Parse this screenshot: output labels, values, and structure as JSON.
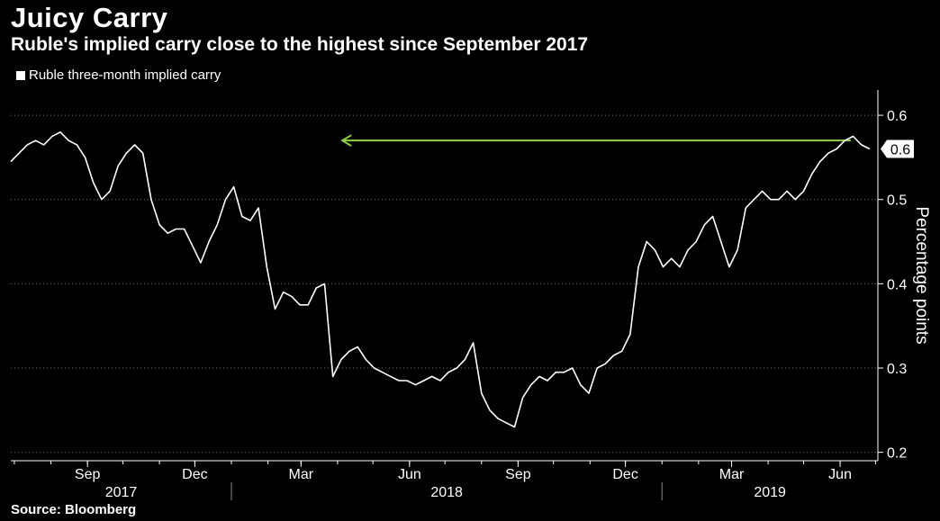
{
  "header": {
    "title": "Juicy Carry",
    "subtitle": "Ruble's implied carry close to the highest since September 2017"
  },
  "legend": {
    "label": "Ruble three-month implied carry"
  },
  "footer": {
    "source": "Source: Bloomberg"
  },
  "colors": {
    "background": "#000000",
    "line": "#ffffff",
    "grid": "#6e6e6e",
    "arrow": "#8ed13f"
  },
  "chart_data": {
    "type": "line",
    "title": "Juicy Carry",
    "subtitle": "Ruble's implied carry close to the highest since September 2017",
    "ylabel": "Percentage points",
    "xlabel": "",
    "ylim": [
      0.19,
      0.63
    ],
    "xlim": [
      "2017-06-28",
      "2019-07-03"
    ],
    "y_ticks": [
      0.2,
      0.3,
      0.4,
      0.5,
      0.6
    ],
    "y_tick_labels": [
      "0.2",
      "0.3",
      "0.4",
      "0.5",
      "0.6"
    ],
    "x_month_ticks": [
      {
        "date": "2017-09-01",
        "label": "Sep"
      },
      {
        "date": "2017-12-01",
        "label": "Dec"
      },
      {
        "date": "2018-03-01",
        "label": "Mar"
      },
      {
        "date": "2018-06-01",
        "label": "Jun"
      },
      {
        "date": "2018-09-01",
        "label": "Sep"
      },
      {
        "date": "2018-12-01",
        "label": "Dec"
      },
      {
        "date": "2019-03-01",
        "label": "Mar"
      },
      {
        "date": "2019-06-01",
        "label": "Jun"
      }
    ],
    "x_year_labels": [
      {
        "label": "2017",
        "start": "2017-06-28",
        "end": "2018-01-01"
      },
      {
        "label": "2018",
        "start": "2018-01-01",
        "end": "2019-01-01"
      },
      {
        "label": "2019",
        "start": "2019-01-01",
        "end": "2019-07-03"
      }
    ],
    "grid": true,
    "legend_position": "top-left",
    "last_value_label": "0.6",
    "annotation": {
      "type": "arrow",
      "from": "2019-06-10",
      "to": "2018-04-05",
      "y": 0.57,
      "direction": "left"
    },
    "series": [
      {
        "name": "Ruble three-month implied carry",
        "x": [
          "2017-06-28",
          "2017-07-05",
          "2017-07-12",
          "2017-07-19",
          "2017-07-26",
          "2017-08-02",
          "2017-08-09",
          "2017-08-16",
          "2017-08-23",
          "2017-08-30",
          "2017-09-06",
          "2017-09-13",
          "2017-09-20",
          "2017-09-27",
          "2017-10-04",
          "2017-10-11",
          "2017-10-18",
          "2017-10-25",
          "2017-11-01",
          "2017-11-08",
          "2017-11-15",
          "2017-11-22",
          "2017-11-29",
          "2017-12-06",
          "2017-12-13",
          "2017-12-20",
          "2017-12-27",
          "2018-01-03",
          "2018-01-10",
          "2018-01-17",
          "2018-01-24",
          "2018-01-31",
          "2018-02-07",
          "2018-02-14",
          "2018-02-21",
          "2018-02-28",
          "2018-03-07",
          "2018-03-14",
          "2018-03-21",
          "2018-03-28",
          "2018-04-04",
          "2018-04-11",
          "2018-04-18",
          "2018-04-25",
          "2018-05-02",
          "2018-05-09",
          "2018-05-16",
          "2018-05-23",
          "2018-05-30",
          "2018-06-06",
          "2018-06-13",
          "2018-06-20",
          "2018-06-27",
          "2018-07-04",
          "2018-07-11",
          "2018-07-18",
          "2018-07-25",
          "2018-08-01",
          "2018-08-08",
          "2018-08-15",
          "2018-08-22",
          "2018-08-29",
          "2018-09-05",
          "2018-09-12",
          "2018-09-19",
          "2018-09-26",
          "2018-10-03",
          "2018-10-10",
          "2018-10-17",
          "2018-10-24",
          "2018-10-31",
          "2018-11-07",
          "2018-11-14",
          "2018-11-21",
          "2018-11-28",
          "2018-12-05",
          "2018-12-12",
          "2018-12-19",
          "2018-12-26",
          "2019-01-02",
          "2019-01-09",
          "2019-01-16",
          "2019-01-23",
          "2019-01-30",
          "2019-02-06",
          "2019-02-13",
          "2019-02-20",
          "2019-02-27",
          "2019-03-06",
          "2019-03-13",
          "2019-03-20",
          "2019-03-27",
          "2019-04-03",
          "2019-04-10",
          "2019-04-17",
          "2019-04-24",
          "2019-05-01",
          "2019-05-08",
          "2019-05-15",
          "2019-05-22",
          "2019-05-29",
          "2019-06-05",
          "2019-06-12",
          "2019-06-19",
          "2019-06-26"
        ],
        "y": [
          0.545,
          0.555,
          0.565,
          0.57,
          0.565,
          0.575,
          0.58,
          0.57,
          0.565,
          0.55,
          0.52,
          0.5,
          0.51,
          0.54,
          0.555,
          0.565,
          0.555,
          0.5,
          0.47,
          0.46,
          0.465,
          0.465,
          0.445,
          0.425,
          0.45,
          0.47,
          0.5,
          0.515,
          0.48,
          0.475,
          0.49,
          0.42,
          0.37,
          0.39,
          0.385,
          0.375,
          0.375,
          0.395,
          0.4,
          0.29,
          0.31,
          0.32,
          0.325,
          0.31,
          0.3,
          0.295,
          0.29,
          0.285,
          0.285,
          0.28,
          0.285,
          0.29,
          0.285,
          0.295,
          0.3,
          0.31,
          0.33,
          0.27,
          0.25,
          0.24,
          0.235,
          0.23,
          0.265,
          0.28,
          0.29,
          0.285,
          0.295,
          0.295,
          0.3,
          0.28,
          0.27,
          0.3,
          0.305,
          0.315,
          0.32,
          0.34,
          0.42,
          0.45,
          0.44,
          0.42,
          0.43,
          0.42,
          0.44,
          0.45,
          0.47,
          0.48,
          0.45,
          0.42,
          0.44,
          0.49,
          0.5,
          0.51,
          0.5,
          0.5,
          0.51,
          0.5,
          0.51,
          0.53,
          0.545,
          0.555,
          0.56,
          0.57,
          0.575,
          0.565,
          0.56
        ]
      }
    ]
  }
}
